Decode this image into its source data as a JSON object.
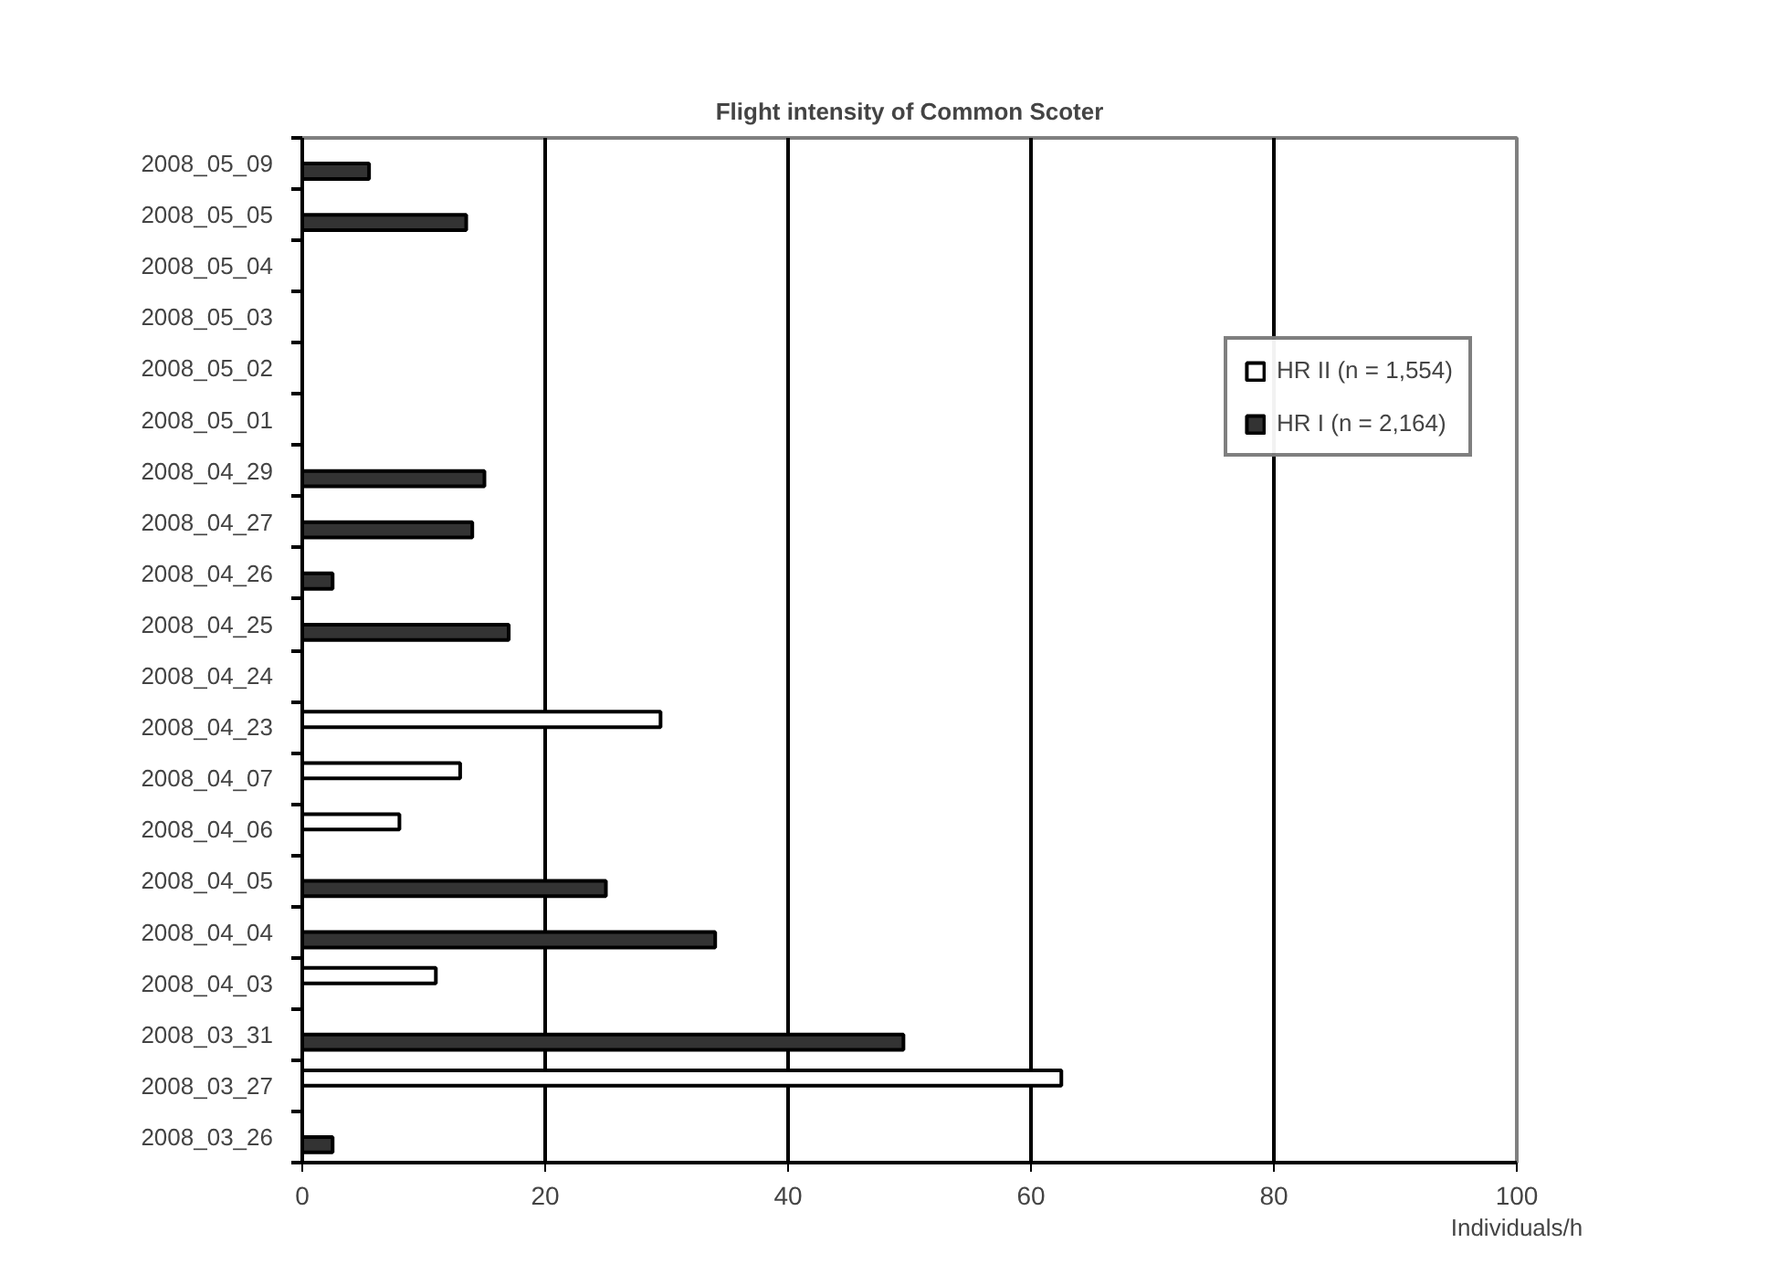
{
  "chart_data": {
    "type": "bar",
    "orientation": "horizontal",
    "title": "Flight intensity of Common Scoter",
    "xlabel": "Individuals/h",
    "categories": [
      "2008_05_09",
      "2008_05_05",
      "2008_05_04",
      "2008_05_03",
      "2008_05_02",
      "2008_05_01",
      "2008_04_29",
      "2008_04_27",
      "2008_04_26",
      "2008_04_25",
      "2008_04_24",
      "2008_04_23",
      "2008_04_07",
      "2008_04_06",
      "2008_04_05",
      "2008_04_04",
      "2008_04_03",
      "2008_03_31",
      "2008_03_27",
      "2008_03_26"
    ],
    "series": [
      {
        "name": "HR II (n = 1,554)",
        "color": "#ffffff",
        "values": [
          null,
          null,
          null,
          null,
          null,
          null,
          null,
          null,
          null,
          null,
          null,
          29.5,
          13,
          8,
          null,
          null,
          11,
          null,
          62.5,
          null
        ]
      },
      {
        "name": "HR I (n = 2,164)",
        "color": "#333333",
        "values": [
          5.5,
          13.5,
          null,
          null,
          null,
          null,
          15,
          14,
          2.5,
          17,
          null,
          null,
          null,
          null,
          25,
          34,
          null,
          49.5,
          null,
          2.5
        ]
      }
    ],
    "xlim": [
      0,
      100
    ],
    "xticks": [
      0,
      20,
      40,
      60,
      80,
      100
    ],
    "grid": "x",
    "legend": "top right"
  }
}
